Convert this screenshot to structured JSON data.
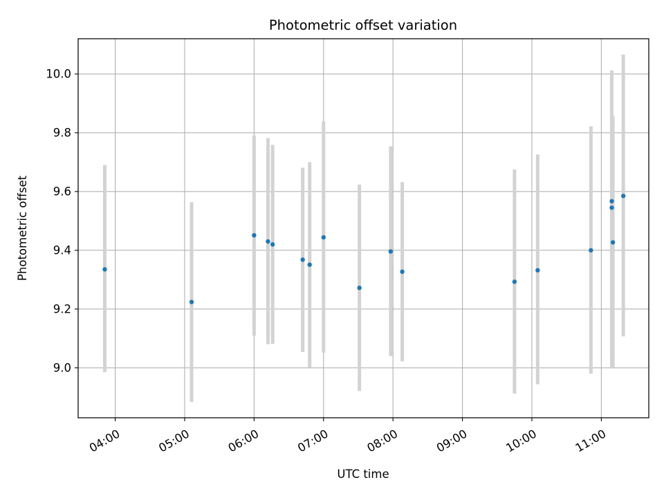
{
  "chart_data": {
    "type": "scatter",
    "title": "Photometric offset variation",
    "xlabel": "UTC time",
    "ylabel": "Photometric offset",
    "x_unit": "hours",
    "xlim": [
      "03:28",
      "11:41"
    ],
    "ylim": [
      8.83,
      10.12
    ],
    "x_ticks": [
      "04:00",
      "05:00",
      "06:00",
      "07:00",
      "08:00",
      "09:00",
      "10:00",
      "11:00"
    ],
    "y_ticks": [
      9.0,
      9.2,
      9.4,
      9.6,
      9.8,
      10.0
    ],
    "y_tick_labels": [
      "9.0",
      "9.2",
      "9.4",
      "9.6",
      "9.8",
      "10.0"
    ],
    "grid": true,
    "colors": {
      "points": "#1f77b4",
      "errorbars": "#d3d3d3",
      "grid": "#b0b0b0"
    },
    "series": [
      {
        "x": [
          "03:51",
          "05:06",
          "06:00",
          "06:12",
          "06:16",
          "06:42",
          "06:48",
          "07:00",
          "07:31",
          "07:58",
          "08:08",
          "09:45",
          "10:05",
          "10:51",
          "11:09",
          "11:09",
          "11:10",
          "11:19"
        ],
        "y": [
          9.335,
          9.224,
          9.451,
          9.43,
          9.42,
          9.368,
          9.351,
          9.444,
          9.272,
          9.396,
          9.327,
          9.293,
          9.332,
          9.4,
          9.545,
          9.567,
          9.427,
          9.585
        ],
        "yerr_low": [
          8.985,
          8.884,
          9.109,
          9.08,
          9.082,
          9.054,
          9.0,
          9.052,
          8.921,
          9.04,
          9.022,
          8.912,
          8.944,
          8.98,
          9.075,
          9.0,
          9.0,
          9.107
        ],
        "yerr_high": [
          9.69,
          9.564,
          9.791,
          9.782,
          9.759,
          9.681,
          9.7,
          9.839,
          9.624,
          9.754,
          9.632,
          9.675,
          9.726,
          9.822,
          10.012,
          9.972,
          9.856,
          10.066
        ]
      }
    ]
  }
}
